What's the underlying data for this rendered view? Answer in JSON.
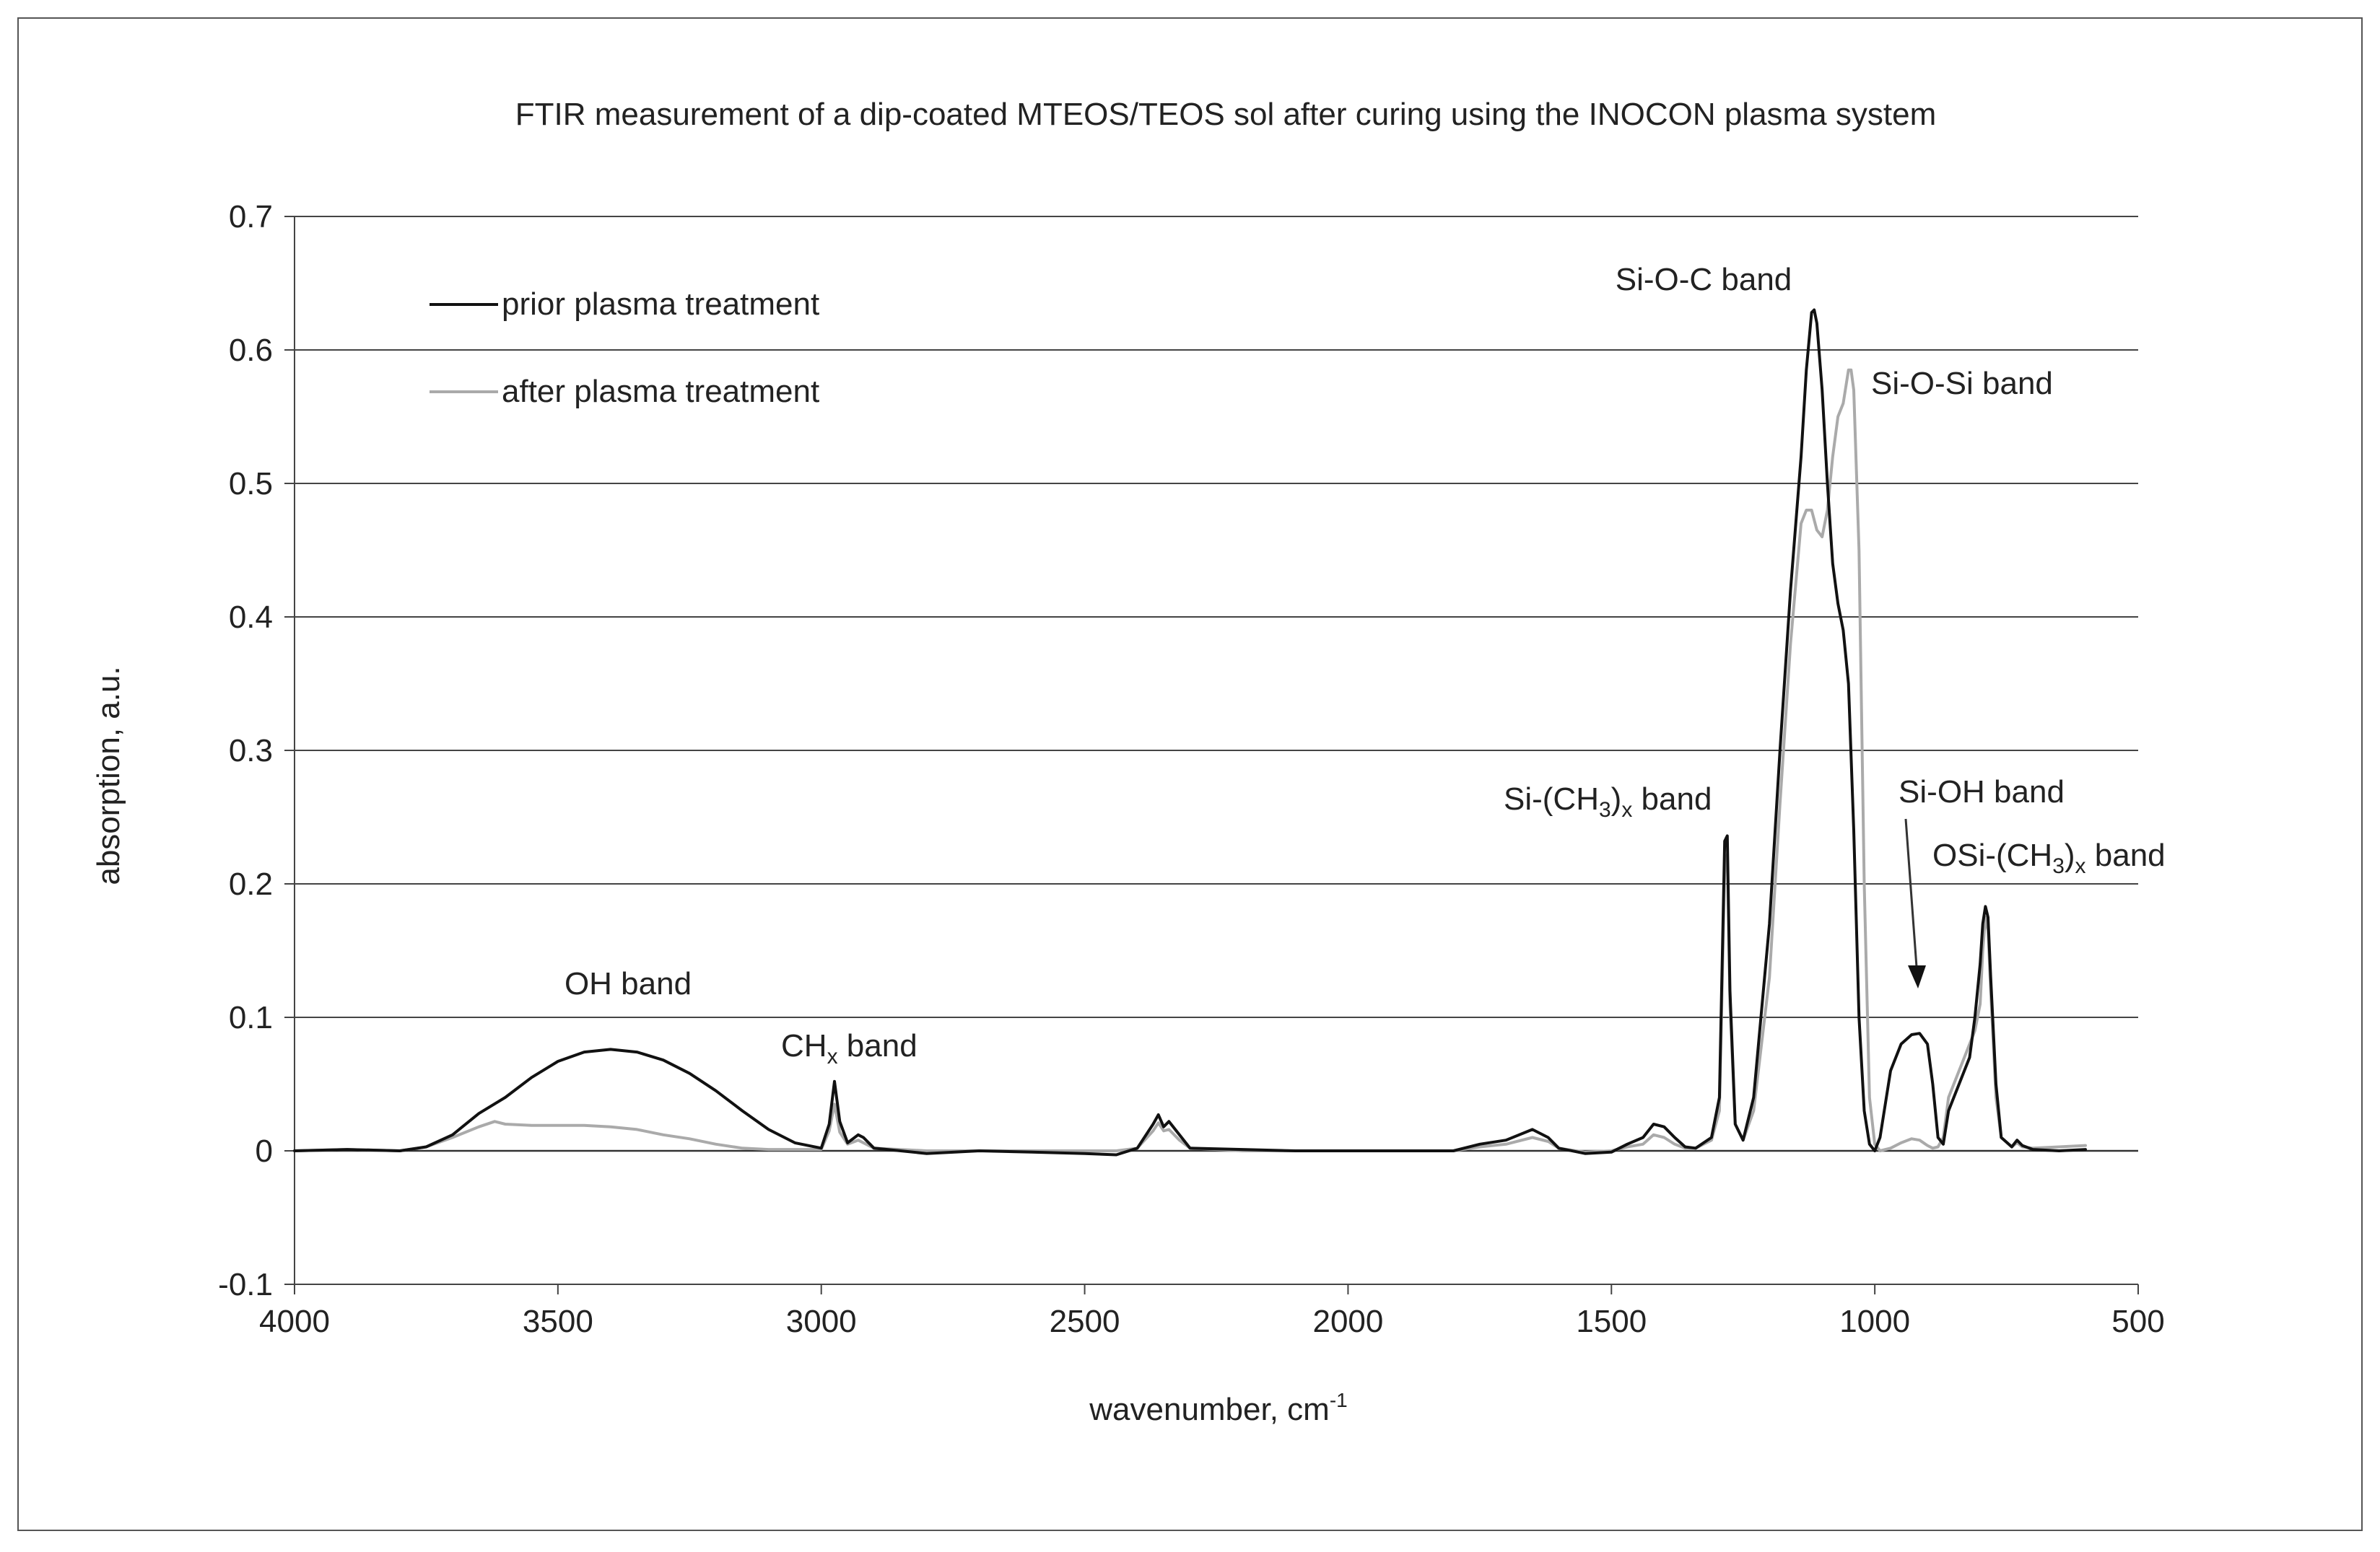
{
  "chart_data": {
    "type": "line",
    "title": "FTIR measurement of a dip-coated MTEOS/TEOS sol after curing using the INOCON plasma system",
    "xlabel": {
      "main": "wavenumber, cm",
      "sup": "-1"
    },
    "ylabel": "absorption, a.u.",
    "xlim": [
      4000,
      500
    ],
    "ylim": [
      -0.1,
      0.7
    ],
    "x_reversed": true,
    "x_ticks": [
      4000,
      3500,
      3000,
      2500,
      2000,
      1500,
      1000,
      500
    ],
    "x_tick_labels": [
      "4000",
      "3500",
      "3000",
      "2500",
      "2000",
      "1500",
      "1000",
      "500"
    ],
    "y_ticks": [
      -0.1,
      0,
      0.1,
      0.2,
      0.3,
      0.4,
      0.5,
      0.6,
      0.7
    ],
    "y_tick_labels": [
      "-0.1",
      "0",
      "0.1",
      "0.2",
      "0.3",
      "0.4",
      "0.5",
      "0.6",
      "0.7"
    ],
    "grid": "horizontal",
    "legend_position": "top-left",
    "series": [
      {
        "name": "prior plasma treatment",
        "color": "#111111",
        "points": [
          [
            4000,
            0
          ],
          [
            3900,
            0.001
          ],
          [
            3800,
            0
          ],
          [
            3750,
            0.003
          ],
          [
            3700,
            0.012
          ],
          [
            3650,
            0.028
          ],
          [
            3600,
            0.04
          ],
          [
            3550,
            0.055
          ],
          [
            3500,
            0.067
          ],
          [
            3450,
            0.074
          ],
          [
            3400,
            0.076
          ],
          [
            3350,
            0.074
          ],
          [
            3300,
            0.068
          ],
          [
            3250,
            0.058
          ],
          [
            3200,
            0.045
          ],
          [
            3150,
            0.03
          ],
          [
            3100,
            0.016
          ],
          [
            3050,
            0.006
          ],
          [
            3000,
            0.002
          ],
          [
            2985,
            0.02
          ],
          [
            2975,
            0.052
          ],
          [
            2965,
            0.022
          ],
          [
            2950,
            0.006
          ],
          [
            2930,
            0.012
          ],
          [
            2920,
            0.01
          ],
          [
            2900,
            0.002
          ],
          [
            2800,
            -0.002
          ],
          [
            2700,
            0
          ],
          [
            2600,
            -0.001
          ],
          [
            2500,
            -0.002
          ],
          [
            2440,
            -0.003
          ],
          [
            2400,
            0.002
          ],
          [
            2370,
            0.02
          ],
          [
            2360,
            0.027
          ],
          [
            2350,
            0.018
          ],
          [
            2340,
            0.022
          ],
          [
            2320,
            0.012
          ],
          [
            2300,
            0.002
          ],
          [
            2200,
            0.001
          ],
          [
            2100,
            0
          ],
          [
            2000,
            0
          ],
          [
            1900,
            0
          ],
          [
            1800,
            0
          ],
          [
            1750,
            0.005
          ],
          [
            1700,
            0.008
          ],
          [
            1650,
            0.016
          ],
          [
            1620,
            0.01
          ],
          [
            1600,
            0.002
          ],
          [
            1550,
            -0.002
          ],
          [
            1500,
            -0.001
          ],
          [
            1470,
            0.005
          ],
          [
            1440,
            0.01
          ],
          [
            1420,
            0.02
          ],
          [
            1400,
            0.018
          ],
          [
            1380,
            0.01
          ],
          [
            1360,
            0.003
          ],
          [
            1340,
            0.002
          ],
          [
            1310,
            0.01
          ],
          [
            1295,
            0.04
          ],
          [
            1285,
            0.232
          ],
          [
            1280,
            0.236
          ],
          [
            1275,
            0.12
          ],
          [
            1265,
            0.02
          ],
          [
            1250,
            0.008
          ],
          [
            1230,
            0.04
          ],
          [
            1200,
            0.17
          ],
          [
            1180,
            0.3
          ],
          [
            1160,
            0.42
          ],
          [
            1140,
            0.52
          ],
          [
            1130,
            0.585
          ],
          [
            1120,
            0.628
          ],
          [
            1115,
            0.63
          ],
          [
            1110,
            0.62
          ],
          [
            1100,
            0.57
          ],
          [
            1090,
            0.5
          ],
          [
            1080,
            0.44
          ],
          [
            1070,
            0.41
          ],
          [
            1060,
            0.39
          ],
          [
            1050,
            0.35
          ],
          [
            1040,
            0.24
          ],
          [
            1030,
            0.1
          ],
          [
            1020,
            0.03
          ],
          [
            1010,
            0.005
          ],
          [
            1000,
            0
          ],
          [
            990,
            0.01
          ],
          [
            970,
            0.06
          ],
          [
            950,
            0.08
          ],
          [
            930,
            0.087
          ],
          [
            915,
            0.088
          ],
          [
            900,
            0.08
          ],
          [
            890,
            0.05
          ],
          [
            880,
            0.01
          ],
          [
            870,
            0.005
          ],
          [
            860,
            0.03
          ],
          [
            840,
            0.05
          ],
          [
            820,
            0.07
          ],
          [
            810,
            0.1
          ],
          [
            800,
            0.14
          ],
          [
            795,
            0.17
          ],
          [
            790,
            0.183
          ],
          [
            785,
            0.175
          ],
          [
            780,
            0.13
          ],
          [
            770,
            0.05
          ],
          [
            760,
            0.01
          ],
          [
            740,
            0.003
          ],
          [
            730,
            0.008
          ],
          [
            720,
            0.004
          ],
          [
            700,
            0.001
          ],
          [
            650,
            0
          ],
          [
            600,
            0.001
          ]
        ]
      },
      {
        "name": "after plasma treatment",
        "color": "#aaaaaa",
        "points": [
          [
            4000,
            0
          ],
          [
            3900,
            0.001
          ],
          [
            3800,
            0
          ],
          [
            3750,
            0.003
          ],
          [
            3700,
            0.01
          ],
          [
            3650,
            0.018
          ],
          [
            3620,
            0.022
          ],
          [
            3600,
            0.02
          ],
          [
            3550,
            0.019
          ],
          [
            3500,
            0.019
          ],
          [
            3450,
            0.019
          ],
          [
            3400,
            0.018
          ],
          [
            3350,
            0.016
          ],
          [
            3300,
            0.012
          ],
          [
            3250,
            0.009
          ],
          [
            3200,
            0.005
          ],
          [
            3150,
            0.002
          ],
          [
            3100,
            0.001
          ],
          [
            3000,
            0.001
          ],
          [
            2985,
            0.015
          ],
          [
            2975,
            0.035
          ],
          [
            2965,
            0.014
          ],
          [
            2950,
            0.005
          ],
          [
            2930,
            0.008
          ],
          [
            2900,
            0.002
          ],
          [
            2800,
            0
          ],
          [
            2700,
            0
          ],
          [
            2600,
            0
          ],
          [
            2500,
            0
          ],
          [
            2440,
            0
          ],
          [
            2400,
            0.002
          ],
          [
            2370,
            0.015
          ],
          [
            2360,
            0.021
          ],
          [
            2350,
            0.015
          ],
          [
            2340,
            0.016
          ],
          [
            2320,
            0.008
          ],
          [
            2300,
            0.002
          ],
          [
            2200,
            0
          ],
          [
            2100,
            0
          ],
          [
            2000,
            0
          ],
          [
            1900,
            0
          ],
          [
            1800,
            0
          ],
          [
            1750,
            0.003
          ],
          [
            1700,
            0.005
          ],
          [
            1650,
            0.01
          ],
          [
            1620,
            0.007
          ],
          [
            1600,
            0.002
          ],
          [
            1550,
            -0.001
          ],
          [
            1500,
            0
          ],
          [
            1470,
            0.003
          ],
          [
            1440,
            0.005
          ],
          [
            1420,
            0.012
          ],
          [
            1400,
            0.01
          ],
          [
            1380,
            0.005
          ],
          [
            1360,
            0.002
          ],
          [
            1340,
            0.002
          ],
          [
            1310,
            0.008
          ],
          [
            1295,
            0.03
          ],
          [
            1285,
            0.21
          ],
          [
            1280,
            0.222
          ],
          [
            1275,
            0.11
          ],
          [
            1265,
            0.02
          ],
          [
            1250,
            0.008
          ],
          [
            1230,
            0.03
          ],
          [
            1200,
            0.13
          ],
          [
            1180,
            0.26
          ],
          [
            1160,
            0.38
          ],
          [
            1140,
            0.47
          ],
          [
            1130,
            0.48
          ],
          [
            1120,
            0.48
          ],
          [
            1110,
            0.465
          ],
          [
            1100,
            0.46
          ],
          [
            1090,
            0.48
          ],
          [
            1080,
            0.52
          ],
          [
            1070,
            0.55
          ],
          [
            1060,
            0.56
          ],
          [
            1050,
            0.585
          ],
          [
            1045,
            0.585
          ],
          [
            1040,
            0.57
          ],
          [
            1030,
            0.45
          ],
          [
            1020,
            0.2
          ],
          [
            1010,
            0.04
          ],
          [
            1000,
            0.005
          ],
          [
            990,
            0
          ],
          [
            970,
            0.002
          ],
          [
            950,
            0.006
          ],
          [
            930,
            0.009
          ],
          [
            915,
            0.008
          ],
          [
            900,
            0.004
          ],
          [
            890,
            0.002
          ],
          [
            880,
            0.003
          ],
          [
            870,
            0.01
          ],
          [
            860,
            0.04
          ],
          [
            840,
            0.06
          ],
          [
            820,
            0.08
          ],
          [
            810,
            0.09
          ],
          [
            800,
            0.11
          ],
          [
            795,
            0.15
          ],
          [
            790,
            0.175
          ],
          [
            785,
            0.165
          ],
          [
            780,
            0.12
          ],
          [
            770,
            0.04
          ],
          [
            760,
            0.01
          ],
          [
            740,
            0.003
          ],
          [
            730,
            0.006
          ],
          [
            720,
            0.003
          ],
          [
            700,
            0.002
          ],
          [
            650,
            0.003
          ],
          [
            600,
            0.004
          ]
        ]
      }
    ],
    "annotations": {
      "oh": "OH band",
      "chx_main": "CH",
      "chx_sub": "x",
      "chx_tail": " band",
      "sich3_pre": "Si-(CH",
      "sich3_sub1": "3",
      "sich3_mid": ")",
      "sich3_sub2": "x",
      "sich3_tail": " band",
      "sioc": "Si-O-C band",
      "siosi": "Si-O-Si band",
      "sioh": "Si-OH band",
      "osich3_pre": "OSi-(CH",
      "osich3_sub1": "3",
      "osich3_mid": ")",
      "osich3_sub2": "x",
      "osich3_tail": " band"
    }
  }
}
